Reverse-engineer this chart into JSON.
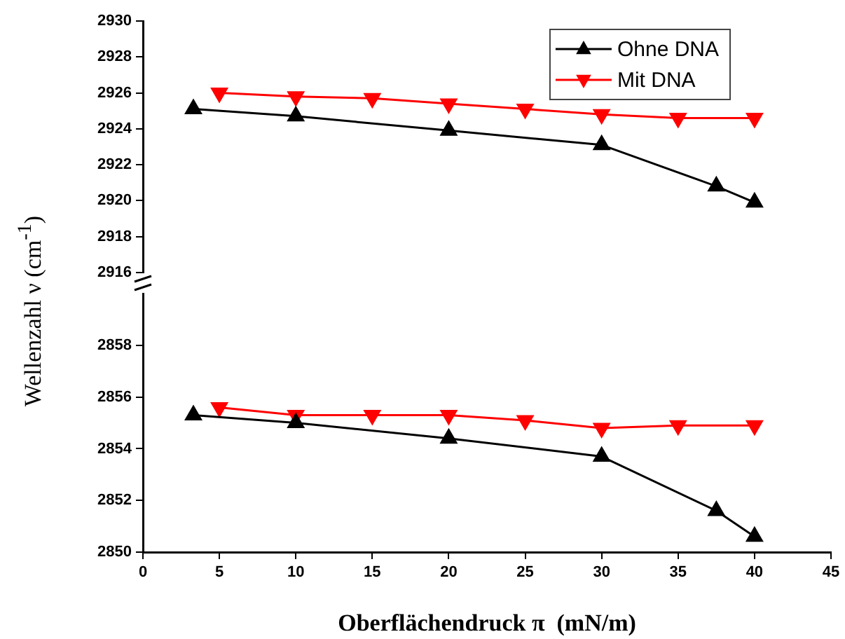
{
  "chart_data": [
    {
      "type": "line",
      "ylabel": "Wellenzahl ν (cm$^{-1}$)",
      "xlim": [
        0,
        45
      ],
      "xticks": [
        0,
        5,
        10,
        15,
        20,
        25,
        30,
        35,
        40,
        45
      ],
      "ylim": [
        2916,
        2930
      ],
      "yticks": [
        2916,
        2918,
        2920,
        2922,
        2924,
        2926,
        2928,
        2930
      ],
      "tick_labels": "y",
      "grid": false,
      "legend": "top right",
      "marker": "triangle",
      "series": [
        {
          "name": "Ohne DNA",
          "color": "#000000",
          "x": [
            3.3,
            10,
            20,
            30,
            37.5,
            40
          ],
          "values": [
            2925.1,
            2924.7,
            2923.9,
            2923.1,
            2920.8,
            2919.9
          ]
        },
        {
          "name": "Mit DNA",
          "color": "#ff0000",
          "x": [
            5,
            10,
            15,
            20,
            25,
            30,
            35,
            40
          ],
          "values": [
            2926.0,
            2925.8,
            2925.7,
            2925.4,
            2925.1,
            2924.8,
            2924.6,
            2924.6
          ]
        }
      ]
    },
    {
      "type": "line",
      "xlabel": "Oberflächendruck π  (mN/m)",
      "xlim": [
        0,
        45
      ],
      "xticks": [
        0,
        5,
        10,
        15,
        20,
        25,
        30,
        35,
        40,
        45
      ],
      "ylim": [
        2850,
        2860
      ],
      "yticks": [
        2850,
        2852,
        2854,
        2856,
        2858
      ],
      "grid": false,
      "marker": "triangle",
      "series": [
        {
          "color": "#000000",
          "x": [
            3.3,
            10,
            20,
            30,
            37.5,
            40
          ],
          "values": [
            2855.3,
            2855.0,
            2854.4,
            2853.7,
            2851.6,
            2850.6
          ]
        },
        {
          "color": "#ff0000",
          "x": [
            5,
            10,
            15,
            20,
            25,
            30,
            35,
            40
          ],
          "values": [
            2855.6,
            2855.3,
            2855.3,
            2855.3,
            2855.1,
            2854.8,
            2854.9,
            2854.9
          ]
        }
      ]
    }
  ]
}
